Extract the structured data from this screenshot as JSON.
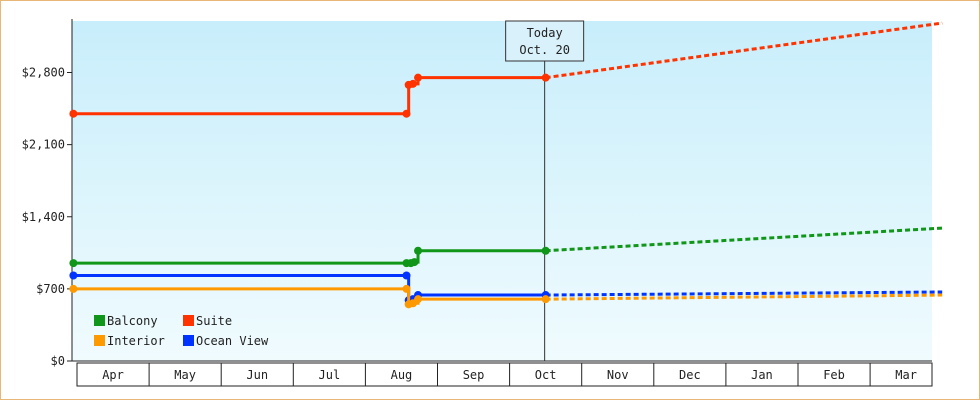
{
  "chart_data": {
    "type": "line",
    "title": "",
    "xlabel": "",
    "ylabel": "",
    "y_ticks": [
      "$0",
      "$700",
      "$1,400",
      "$2,100",
      "$2,800"
    ],
    "y_tick_values": [
      0,
      700,
      1400,
      2100,
      2800
    ],
    "ylim": [
      0,
      3300
    ],
    "x_categories": [
      "Apr",
      "May",
      "Jun",
      "Jul",
      "Aug",
      "Sep",
      "Oct",
      "Nov",
      "Dec",
      "Jan",
      "Feb",
      "Mar"
    ],
    "today_marker": {
      "line1": "Today",
      "line2": "Oct. 20",
      "x": 6.5
    },
    "grid": false,
    "legend_position": "bottom-left",
    "colors": {
      "Balcony": "#109618",
      "Suite": "#ff3300",
      "Interior": "#ff9900",
      "Ocean View": "#0033ff",
      "plot_bg_top": "#c8eefb",
      "plot_bg_bottom": "#f0fbfe",
      "border": "#e8b777"
    },
    "legend": [
      "Balcony",
      "Suite",
      "Interior",
      "Ocean View"
    ],
    "series": [
      {
        "name": "Suite",
        "values": [
          [
            -0.05,
            2400
          ],
          [
            4.57,
            2400
          ],
          [
            4.6,
            2680
          ],
          [
            4.66,
            2690
          ],
          [
            4.73,
            2750
          ],
          [
            6.5,
            2750
          ]
        ],
        "projection": [
          [
            6.5,
            2750
          ],
          [
            12.0,
            3280
          ]
        ]
      },
      {
        "name": "Balcony",
        "values": [
          [
            -0.05,
            950
          ],
          [
            4.57,
            950
          ],
          [
            4.63,
            950
          ],
          [
            4.68,
            960
          ],
          [
            4.73,
            1070
          ],
          [
            6.5,
            1070
          ]
        ],
        "projection": [
          [
            6.5,
            1070
          ],
          [
            12.0,
            1290
          ]
        ]
      },
      {
        "name": "Ocean View",
        "values": [
          [
            -0.05,
            830
          ],
          [
            4.57,
            830
          ],
          [
            4.6,
            590
          ],
          [
            4.66,
            600
          ],
          [
            4.73,
            640
          ],
          [
            6.5,
            640
          ]
        ],
        "projection": [
          [
            6.5,
            640
          ],
          [
            12.0,
            670
          ]
        ]
      },
      {
        "name": "Interior",
        "values": [
          [
            -0.05,
            700
          ],
          [
            4.57,
            700
          ],
          [
            4.6,
            550
          ],
          [
            4.66,
            560
          ],
          [
            4.73,
            600
          ],
          [
            6.5,
            600
          ]
        ],
        "projection": [
          [
            6.5,
            600
          ],
          [
            12.0,
            640
          ]
        ]
      }
    ]
  }
}
